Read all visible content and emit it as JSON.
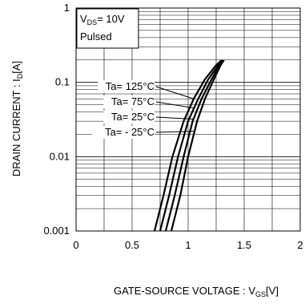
{
  "chart_data": {
    "type": "line",
    "xlabel": {
      "main": "GATE-SOURCE VOLTAGE : V",
      "sub": "GS",
      "unit": "[V]"
    },
    "ylabel": {
      "main": "DRAIN CURRENT : I",
      "sub": "D",
      "unit": "[A]"
    },
    "xlim": [
      0,
      2
    ],
    "ylim": [
      0.001,
      1
    ],
    "yscale": "log",
    "grid": true,
    "x_ticks": [
      "0",
      "0.5",
      "1",
      "1.5",
      "2"
    ],
    "y_ticks": [
      "0.001",
      "0.01",
      "0.1",
      "1"
    ],
    "conditions": {
      "line1_pre": "V",
      "line1_sub": "DS",
      "line1_post": "= 10V",
      "line2": "Pulsed"
    },
    "series": [
      {
        "name": "Ta= 125°C",
        "x": [
          0.7,
          0.78,
          0.86,
          0.96,
          1.05,
          1.15,
          1.25,
          1.3
        ],
        "y": [
          0.001,
          0.003,
          0.01,
          0.03,
          0.06,
          0.11,
          0.17,
          0.2
        ]
      },
      {
        "name": "Ta= 75°C",
        "x": [
          0.75,
          0.83,
          0.91,
          1.0,
          1.09,
          1.18,
          1.27,
          1.31
        ],
        "y": [
          0.001,
          0.003,
          0.01,
          0.03,
          0.06,
          0.11,
          0.17,
          0.2
        ]
      },
      {
        "name": "Ta= 25°C",
        "x": [
          0.8,
          0.88,
          0.96,
          1.04,
          1.12,
          1.21,
          1.28,
          1.31
        ],
        "y": [
          0.001,
          0.003,
          0.01,
          0.03,
          0.06,
          0.11,
          0.17,
          0.2
        ]
      },
      {
        "name": "Ta= - 25°C",
        "x": [
          0.85,
          0.93,
          1.0,
          1.08,
          1.15,
          1.23,
          1.29,
          1.32
        ],
        "y": [
          0.001,
          0.003,
          0.01,
          0.03,
          0.06,
          0.11,
          0.17,
          0.2
        ]
      }
    ]
  }
}
